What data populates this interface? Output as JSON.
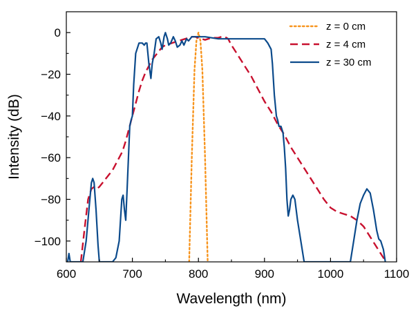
{
  "chart_data": {
    "type": "line",
    "title": "",
    "xlabel": "Wavelength (nm)",
    "ylabel": "Intensity (dB)",
    "xlim": [
      600,
      1100
    ],
    "ylim": [
      -110,
      10
    ],
    "xticks": [
      600,
      700,
      800,
      900,
      1000,
      1100
    ],
    "xtick_labels": [
      "600",
      "700",
      "800",
      "900",
      "1000",
      "1100"
    ],
    "yticks": [
      0,
      -20,
      -40,
      -60,
      -80,
      -100
    ],
    "ytick_labels": [
      "0",
      "−20",
      "−40",
      "−60",
      "−80",
      "−100"
    ],
    "legend_position": "top-right",
    "series": [
      {
        "name": "z = 0 cm",
        "color": "#F7941D",
        "style": "dotted",
        "x": [
          786,
          790,
          794,
          797,
          800,
          803,
          806,
          810,
          814
        ],
        "y": [
          -110,
          -60,
          -18,
          -4,
          0,
          -4,
          -18,
          -60,
          -110
        ]
      },
      {
        "name": "z = 4 cm",
        "color": "#C8102E",
        "style": "dashed",
        "x": [
          622,
          628,
          633,
          638,
          642,
          646,
          650,
          655,
          660,
          665,
          670,
          675,
          680,
          685,
          690,
          695,
          700,
          705,
          710,
          715,
          720,
          725,
          730,
          735,
          740,
          745,
          750,
          755,
          760,
          765,
          770,
          775,
          780,
          785,
          790,
          795,
          800,
          805,
          810,
          815,
          820,
          825,
          830,
          835,
          840,
          845,
          850,
          860,
          870,
          880,
          890,
          900,
          910,
          920,
          930,
          940,
          950,
          960,
          970,
          980,
          990,
          1000,
          1010,
          1020,
          1030,
          1040,
          1050,
          1060,
          1070,
          1080,
          1085
        ],
        "y": [
          -110,
          -93,
          -80,
          -75,
          -74,
          -75,
          -74,
          -72,
          -70,
          -68,
          -66,
          -63,
          -60,
          -57,
          -52,
          -46,
          -40,
          -34,
          -28,
          -23,
          -19,
          -16,
          -13,
          -11,
          -9,
          -7,
          -6,
          -5.5,
          -5,
          -4.5,
          -4,
          -3.5,
          -3,
          -2.5,
          -2,
          -2,
          -2.5,
          -3,
          -3.5,
          -3,
          -2.5,
          -2.5,
          -2.5,
          -2,
          -2,
          -3,
          -6,
          -11,
          -16,
          -21,
          -27,
          -33,
          -38,
          -44,
          -49,
          -55,
          -60,
          -65,
          -70,
          -75,
          -80,
          -84,
          -86,
          -87,
          -88,
          -90,
          -93,
          -98,
          -103,
          -108,
          -110
        ]
      },
      {
        "name": "z = 30 cm",
        "color": "#0B4A8B",
        "style": "solid",
        "x": [
          602,
          604,
          606,
          610,
          615,
          620,
          625,
          630,
          635,
          638,
          640,
          642,
          645,
          648,
          650,
          652,
          655,
          660,
          665,
          670,
          675,
          680,
          682,
          684,
          686,
          688,
          690,
          692,
          694,
          696,
          698,
          700,
          702,
          705,
          710,
          715,
          718,
          720,
          722,
          725,
          728,
          730,
          733,
          736,
          740,
          743,
          745,
          748,
          750,
          753,
          755,
          758,
          762,
          765,
          768,
          772,
          775,
          778,
          782,
          785,
          790,
          795,
          800,
          810,
          820,
          830,
          840,
          850,
          860,
          870,
          880,
          890,
          900,
          905,
          910,
          912,
          915,
          918,
          920,
          922,
          925,
          928,
          930,
          932,
          934,
          936,
          938,
          940,
          943,
          946,
          950,
          955,
          960,
          965,
          968,
          970,
          975,
          980,
          990,
          1000,
          1010,
          1020,
          1030,
          1035,
          1040,
          1045,
          1050,
          1055,
          1060,
          1065,
          1070,
          1073,
          1076,
          1078,
          1080,
          1083
        ],
        "y": [
          -110,
          -106,
          -110,
          -110,
          -110,
          -110,
          -110,
          -100,
          -82,
          -72,
          -70,
          -72,
          -85,
          -102,
          -110,
          -110,
          -110,
          -110,
          -110,
          -110,
          -108,
          -100,
          -90,
          -80,
          -78,
          -85,
          -90,
          -75,
          -60,
          -45,
          -42,
          -40,
          -25,
          -10,
          -5,
          -5,
          -6,
          -5,
          -5,
          -15,
          -22,
          -15,
          -10,
          -3,
          -2,
          -5,
          -8,
          -2,
          0,
          -3,
          -6,
          -5,
          -2,
          -4,
          -7,
          -6,
          -4,
          -6,
          -3,
          -4,
          -2,
          -2,
          -2,
          -2,
          -2.5,
          -3,
          -3,
          -3,
          -3,
          -3,
          -3,
          -3,
          -3,
          -5,
          -8,
          -15,
          -30,
          -40,
          -42,
          -45,
          -45,
          -48,
          -55,
          -65,
          -80,
          -88,
          -85,
          -80,
          -78,
          -80,
          -90,
          -100,
          -110,
          -110,
          -110,
          -110,
          -110,
          -110,
          -110,
          -110,
          -110,
          -110,
          -110,
          -100,
          -90,
          -82,
          -78,
          -75,
          -77,
          -85,
          -95,
          -99,
          -100,
          -102,
          -104,
          -110
        ]
      }
    ]
  }
}
